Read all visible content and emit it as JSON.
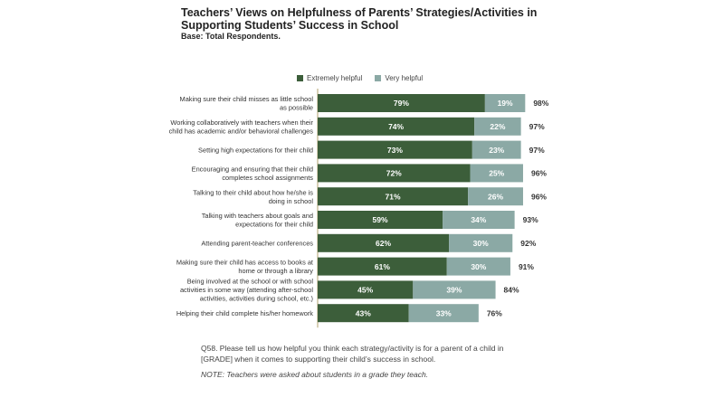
{
  "title": "Teachers’ Views on Helpfulness of Parents’ Strategies/Activities in Supporting Students’ Success in School",
  "subtitle": "Base: Total Respondents.",
  "legend": {
    "extremely": "Extremely helpful",
    "very": "Very helpful"
  },
  "colors": {
    "extremely": "#3c5e3a",
    "very": "#8ba9a5",
    "axis": "#b2a06e"
  },
  "footnote": "Q58. Please tell us how helpful you think each strategy/activity is for a parent of a child in [GRADE] when it comes to supporting their child’s success in school.",
  "note": "NOTE: Teachers were asked about students in a grade they teach.",
  "chart_data": {
    "type": "bar",
    "orientation": "horizontal",
    "stacked": true,
    "categories": [
      [
        "Making sure their child misses as little school",
        "as possible"
      ],
      [
        "Working collaboratively with teachers when their",
        "child has academic and/or behavioral challenges"
      ],
      [
        "Setting high expectations for their child"
      ],
      [
        "Encouraging and ensuring that their child",
        "completes school assignments"
      ],
      [
        "Talking to their child about how he/she is",
        "doing in school"
      ],
      [
        "Talking with teachers about goals and",
        "expectations for their child"
      ],
      [
        "Attending parent-teacher conferences"
      ],
      [
        "Making sure their child has access to books at",
        "home or through a library"
      ],
      [
        "Being involved at the school or with school",
        "activities in some way (attending after-school",
        "activities, activities during school, etc.)"
      ],
      [
        "Helping their child complete his/her homework"
      ]
    ],
    "series": [
      {
        "name": "Extremely helpful",
        "values": [
          79,
          74,
          73,
          72,
          71,
          59,
          62,
          61,
          45,
          43
        ]
      },
      {
        "name": "Very helpful",
        "values": [
          19,
          22,
          23,
          25,
          26,
          34,
          30,
          30,
          39,
          33
        ]
      }
    ],
    "totals": [
      98,
      97,
      97,
      96,
      96,
      93,
      92,
      91,
      84,
      76
    ],
    "value_suffix": "%"
  }
}
